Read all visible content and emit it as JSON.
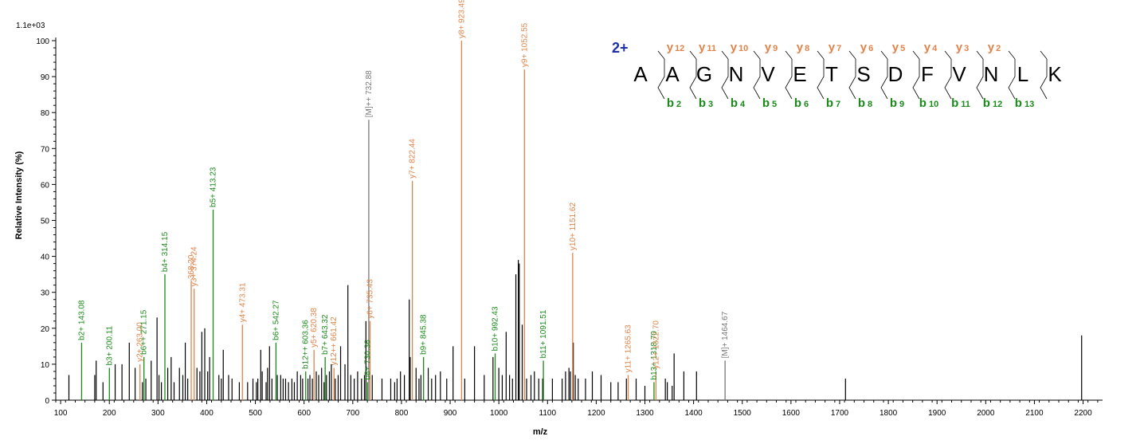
{
  "colors": {
    "b": "#1a8a1a",
    "y": "#e0844a",
    "M": "#777777",
    "other": "#000000",
    "charge": "#1f2fa8"
  },
  "chart_data": {
    "type": "bar",
    "title": "",
    "xlabel": "m/z",
    "ylabel": "Relative   Intensity (%)",
    "scale_label": "1.1e+03",
    "xlim": [
      90,
      2240
    ],
    "ylim": [
      0,
      100
    ],
    "xticks": [
      100,
      200,
      300,
      400,
      500,
      600,
      700,
      800,
      900,
      1000,
      1100,
      1200,
      1300,
      1400,
      1500,
      1600,
      1700,
      1800,
      1900,
      2000,
      2100,
      2200
    ],
    "yticks": [
      0,
      10,
      20,
      30,
      40,
      50,
      60,
      70,
      80,
      90,
      100
    ],
    "annotated_peaks": [
      {
        "mz": 143.08,
        "intensity": 16,
        "type": "b",
        "label": "b2+ 143.08"
      },
      {
        "mz": 200.11,
        "intensity": 9,
        "type": "b",
        "label": "b3+ 200.11"
      },
      {
        "mz": 263.0,
        "intensity": 10,
        "type": "y",
        "label": "y2+ 263.00"
      },
      {
        "mz": 271.15,
        "intensity": 12,
        "type": "b",
        "label": "b6++ 271.15"
      },
      {
        "mz": 314.15,
        "intensity": 35,
        "type": "b",
        "label": "b4+ 314.15"
      },
      {
        "mz": 368.2,
        "intensity": 33,
        "type": "y",
        "label": "368.20"
      },
      {
        "mz": 374.24,
        "intensity": 31,
        "type": "y",
        "label": "y3+ 374.24"
      },
      {
        "mz": 413.23,
        "intensity": 53,
        "type": "b",
        "label": "b5+ 413.23"
      },
      {
        "mz": 473.31,
        "intensity": 21,
        "type": "y",
        "label": "y4+ 473.31"
      },
      {
        "mz": 542.27,
        "intensity": 16,
        "type": "b",
        "label": "b6+ 542.27"
      },
      {
        "mz": 603.36,
        "intensity": 8,
        "type": "b",
        "label": "b12++ 603.36"
      },
      {
        "mz": 620.38,
        "intensity": 14,
        "type": "y",
        "label": "y5+ 620.38"
      },
      {
        "mz": 643.32,
        "intensity": 12,
        "type": "b",
        "label": "b7+ 643.32"
      },
      {
        "mz": 661.42,
        "intensity": 9,
        "type": "y",
        "label": "y12++ 661.42"
      },
      {
        "mz": 730.36,
        "intensity": 5,
        "type": "b",
        "label": "b8+ 730.36"
      },
      {
        "mz": 732.88,
        "intensity": 78,
        "type": "M",
        "label": "[M]++ 732.88"
      },
      {
        "mz": 735.43,
        "intensity": 22,
        "type": "y",
        "label": "y6+ 735.43"
      },
      {
        "mz": 822.44,
        "intensity": 61,
        "type": "y",
        "label": "y7+ 822.44"
      },
      {
        "mz": 845.38,
        "intensity": 12,
        "type": "b",
        "label": "b9+ 845.38"
      },
      {
        "mz": 923.49,
        "intensity": 100,
        "type": "y",
        "label": "y8+ 923.49"
      },
      {
        "mz": 992.43,
        "intensity": 13,
        "type": "b",
        "label": "b10+ 992.43"
      },
      {
        "mz": 1052.55,
        "intensity": 92,
        "type": "y",
        "label": "y9+ 1052.55"
      },
      {
        "mz": 1091.51,
        "intensity": 11,
        "type": "b",
        "label": "b11+ 1091.51"
      },
      {
        "mz": 1151.62,
        "intensity": 41,
        "type": "y",
        "label": "y10+ 1151.62"
      },
      {
        "mz": 1265.63,
        "intensity": 7,
        "type": "y",
        "label": "y11+ 1265.63"
      },
      {
        "mz": 1318.7,
        "intensity": 5,
        "type": "b",
        "label": "b13+ 1318.70"
      },
      {
        "mz": 1322.7,
        "intensity": 8,
        "type": "y",
        "label": "y12+ 1322.70"
      },
      {
        "mz": 1464.67,
        "intensity": 11,
        "type": "M",
        "label": "[M]+ 1464.67"
      }
    ],
    "other_peaks": [
      [
        117,
        7
      ],
      [
        170,
        7
      ],
      [
        173,
        11
      ],
      [
        187,
        5
      ],
      [
        212,
        10
      ],
      [
        226,
        10
      ],
      [
        241,
        16
      ],
      [
        253,
        9
      ],
      [
        268,
        5
      ],
      [
        275,
        6
      ],
      [
        286,
        11
      ],
      [
        298,
        23
      ],
      [
        302,
        7
      ],
      [
        307,
        5
      ],
      [
        320,
        9
      ],
      [
        327,
        12
      ],
      [
        333,
        5
      ],
      [
        344,
        9
      ],
      [
        351,
        7
      ],
      [
        356,
        16
      ],
      [
        361,
        6
      ],
      [
        380,
        9
      ],
      [
        386,
        8
      ],
      [
        390,
        19
      ],
      [
        396,
        20
      ],
      [
        402,
        8
      ],
      [
        406,
        12
      ],
      [
        425,
        7
      ],
      [
        430,
        6
      ],
      [
        434,
        14
      ],
      [
        445,
        7
      ],
      [
        452,
        6
      ],
      [
        467,
        5
      ],
      [
        484,
        5
      ],
      [
        495,
        6
      ],
      [
        502,
        5
      ],
      [
        505,
        6
      ],
      [
        511,
        14
      ],
      [
        514,
        8
      ],
      [
        522,
        5
      ],
      [
        525,
        9
      ],
      [
        529,
        15
      ],
      [
        534,
        6
      ],
      [
        545,
        7
      ],
      [
        552,
        7
      ],
      [
        557,
        6
      ],
      [
        562,
        6
      ],
      [
        568,
        5
      ],
      [
        575,
        6
      ],
      [
        580,
        5
      ],
      [
        586,
        8
      ],
      [
        593,
        7
      ],
      [
        597,
        6
      ],
      [
        608,
        6
      ],
      [
        612,
        7
      ],
      [
        617,
        6
      ],
      [
        625,
        8
      ],
      [
        630,
        7
      ],
      [
        636,
        9
      ],
      [
        641,
        5
      ],
      [
        646,
        7
      ],
      [
        652,
        8
      ],
      [
        656,
        10
      ],
      [
        664,
        6
      ],
      [
        670,
        7
      ],
      [
        675,
        15
      ],
      [
        684,
        10
      ],
      [
        690,
        32
      ],
      [
        696,
        7
      ],
      [
        703,
        6
      ],
      [
        710,
        8
      ],
      [
        718,
        6
      ],
      [
        724,
        7
      ],
      [
        727,
        22
      ],
      [
        740,
        7
      ],
      [
        760,
        6
      ],
      [
        778,
        6
      ],
      [
        786,
        5
      ],
      [
        791,
        6
      ],
      [
        798,
        8
      ],
      [
        806,
        7
      ],
      [
        816,
        28
      ],
      [
        818,
        12
      ],
      [
        830,
        9
      ],
      [
        836,
        6
      ],
      [
        840,
        7
      ],
      [
        855,
        9
      ],
      [
        862,
        6
      ],
      [
        870,
        7
      ],
      [
        880,
        8
      ],
      [
        893,
        6
      ],
      [
        906,
        15
      ],
      [
        930,
        6
      ],
      [
        950,
        15
      ],
      [
        970,
        7
      ],
      [
        988,
        12
      ],
      [
        1000,
        9
      ],
      [
        1007,
        7
      ],
      [
        1015,
        19
      ],
      [
        1022,
        7
      ],
      [
        1028,
        6
      ],
      [
        1035,
        35
      ],
      [
        1040,
        39
      ],
      [
        1042,
        38
      ],
      [
        1048,
        21
      ],
      [
        1057,
        6
      ],
      [
        1066,
        7
      ],
      [
        1073,
        8
      ],
      [
        1082,
        6
      ],
      [
        1090,
        6
      ],
      [
        1110,
        6
      ],
      [
        1130,
        6
      ],
      [
        1137,
        8
      ],
      [
        1144,
        9
      ],
      [
        1147,
        8
      ],
      [
        1153,
        16
      ],
      [
        1157,
        7
      ],
      [
        1163,
        6
      ],
      [
        1178,
        6
      ],
      [
        1192,
        8
      ],
      [
        1210,
        7
      ],
      [
        1230,
        5
      ],
      [
        1245,
        5
      ],
      [
        1262,
        6
      ],
      [
        1282,
        6
      ],
      [
        1300,
        4
      ],
      [
        1342,
        6
      ],
      [
        1346,
        5
      ],
      [
        1356,
        4
      ],
      [
        1360,
        13
      ],
      [
        1380,
        8
      ],
      [
        1406,
        8
      ],
      [
        1712,
        6
      ],
      [
        2197,
        18
      ]
    ]
  },
  "sequence": {
    "charge": "2+",
    "residues": [
      "A",
      "A",
      "G",
      "N",
      "V",
      "E",
      "T",
      "S",
      "D",
      "F",
      "V",
      "N",
      "L",
      "K"
    ],
    "y_ions": [
      {
        "letter": "y",
        "num": "12"
      },
      {
        "letter": "y",
        "num": "11"
      },
      {
        "letter": "y",
        "num": "10"
      },
      {
        "letter": "y",
        "num": "9"
      },
      {
        "letter": "y",
        "num": "8"
      },
      {
        "letter": "y",
        "num": "7"
      },
      {
        "letter": "y",
        "num": "6"
      },
      {
        "letter": "y",
        "num": "5"
      },
      {
        "letter": "y",
        "num": "4"
      },
      {
        "letter": "y",
        "num": "3"
      },
      {
        "letter": "y",
        "num": "2"
      }
    ],
    "b_ions": [
      {
        "letter": "b",
        "num": "2"
      },
      {
        "letter": "b",
        "num": "3"
      },
      {
        "letter": "b",
        "num": "4"
      },
      {
        "letter": "b",
        "num": "5"
      },
      {
        "letter": "b",
        "num": "6"
      },
      {
        "letter": "b",
        "num": "7"
      },
      {
        "letter": "b",
        "num": "8"
      },
      {
        "letter": "b",
        "num": "9"
      },
      {
        "letter": "b",
        "num": "10"
      },
      {
        "letter": "b",
        "num": "11"
      },
      {
        "letter": "b",
        "num": "12"
      },
      {
        "letter": "b",
        "num": "13"
      }
    ]
  }
}
